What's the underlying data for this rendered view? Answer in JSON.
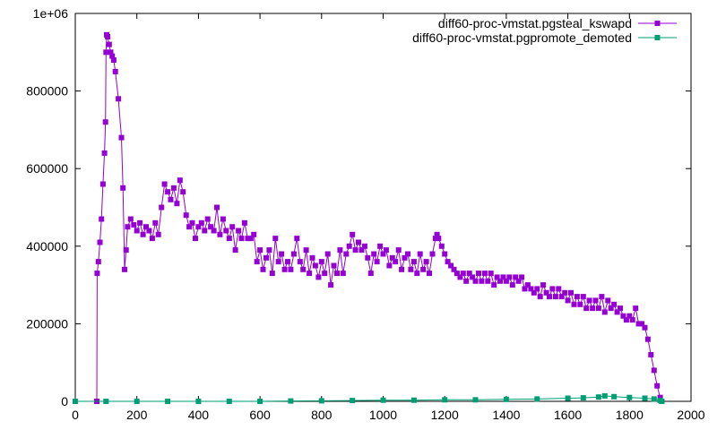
{
  "chart_data": {
    "type": "line",
    "title": "",
    "xlabel": "",
    "ylabel": "",
    "xlim": [
      0,
      2000
    ],
    "ylim": [
      0,
      1000000
    ],
    "x_ticks": [
      0,
      200,
      400,
      600,
      800,
      1000,
      1200,
      1400,
      1600,
      1800,
      2000
    ],
    "y_ticks": [
      0,
      200000,
      400000,
      600000,
      800000,
      1000000
    ],
    "x_tick_labels": [
      "0",
      "200",
      "400",
      "600",
      "800",
      "1000",
      "1200",
      "1400",
      "1600",
      "1800",
      "2000"
    ],
    "y_tick_labels": [
      "0",
      "200000",
      "400000",
      "600000",
      "800000",
      "1e+06"
    ],
    "grid": false,
    "legend_position": "top-right",
    "series": [
      {
        "name": "diff60-proc-vmstat.pgsteal_kswapd",
        "color": "#9400d3",
        "marker": "square",
        "points": [
          [
            70,
            0
          ],
          [
            71,
            330000
          ],
          [
            75,
            360000
          ],
          [
            80,
            410000
          ],
          [
            85,
            470000
          ],
          [
            90,
            560000
          ],
          [
            95,
            640000
          ],
          [
            98,
            720000
          ],
          [
            100,
            900000
          ],
          [
            102,
            945000
          ],
          [
            105,
            940000
          ],
          [
            110,
            920000
          ],
          [
            115,
            900000
          ],
          [
            120,
            890000
          ],
          [
            125,
            880000
          ],
          [
            130,
            850000
          ],
          [
            140,
            780000
          ],
          [
            150,
            680000
          ],
          [
            155,
            550000
          ],
          [
            160,
            340000
          ],
          [
            165,
            390000
          ],
          [
            170,
            450000
          ],
          [
            180,
            470000
          ],
          [
            190,
            455000
          ],
          [
            200,
            440000
          ],
          [
            210,
            460000
          ],
          [
            220,
            430000
          ],
          [
            230,
            450000
          ],
          [
            240,
            440000
          ],
          [
            250,
            420000
          ],
          [
            260,
            460000
          ],
          [
            270,
            430000
          ],
          [
            280,
            500000
          ],
          [
            290,
            560000
          ],
          [
            300,
            540000
          ],
          [
            310,
            520000
          ],
          [
            320,
            550000
          ],
          [
            330,
            510000
          ],
          [
            340,
            570000
          ],
          [
            350,
            540000
          ],
          [
            360,
            480000
          ],
          [
            370,
            450000
          ],
          [
            380,
            460000
          ],
          [
            390,
            420000
          ],
          [
            400,
            450000
          ],
          [
            410,
            460000
          ],
          [
            420,
            440000
          ],
          [
            430,
            470000
          ],
          [
            440,
            450000
          ],
          [
            450,
            440000
          ],
          [
            460,
            500000
          ],
          [
            470,
            430000
          ],
          [
            480,
            470000
          ],
          [
            490,
            440000
          ],
          [
            500,
            420000
          ],
          [
            510,
            450000
          ],
          [
            520,
            390000
          ],
          [
            530,
            440000
          ],
          [
            540,
            420000
          ],
          [
            550,
            460000
          ],
          [
            560,
            420000
          ],
          [
            570,
            420000
          ],
          [
            580,
            430000
          ],
          [
            590,
            360000
          ],
          [
            600,
            390000
          ],
          [
            610,
            340000
          ],
          [
            620,
            370000
          ],
          [
            630,
            390000
          ],
          [
            640,
            330000
          ],
          [
            650,
            420000
          ],
          [
            660,
            360000
          ],
          [
            670,
            380000
          ],
          [
            680,
            340000
          ],
          [
            690,
            360000
          ],
          [
            700,
            340000
          ],
          [
            710,
            380000
          ],
          [
            720,
            420000
          ],
          [
            730,
            360000
          ],
          [
            740,
            340000
          ],
          [
            750,
            390000
          ],
          [
            760,
            330000
          ],
          [
            770,
            370000
          ],
          [
            780,
            350000
          ],
          [
            790,
            320000
          ],
          [
            800,
            360000
          ],
          [
            810,
            330000
          ],
          [
            820,
            380000
          ],
          [
            830,
            300000
          ],
          [
            840,
            350000
          ],
          [
            850,
            330000
          ],
          [
            860,
            390000
          ],
          [
            870,
            330000
          ],
          [
            880,
            380000
          ],
          [
            890,
            400000
          ],
          [
            900,
            430000
          ],
          [
            910,
            390000
          ],
          [
            920,
            410000
          ],
          [
            930,
            390000
          ],
          [
            940,
            400000
          ],
          [
            950,
            370000
          ],
          [
            960,
            330000
          ],
          [
            970,
            380000
          ],
          [
            980,
            360000
          ],
          [
            990,
            400000
          ],
          [
            1000,
            380000
          ],
          [
            1010,
            390000
          ],
          [
            1020,
            350000
          ],
          [
            1030,
            370000
          ],
          [
            1040,
            360000
          ],
          [
            1050,
            390000
          ],
          [
            1060,
            340000
          ],
          [
            1070,
            370000
          ],
          [
            1080,
            380000
          ],
          [
            1090,
            340000
          ],
          [
            1100,
            360000
          ],
          [
            1110,
            330000
          ],
          [
            1120,
            380000
          ],
          [
            1130,
            340000
          ],
          [
            1140,
            360000
          ],
          [
            1150,
            330000
          ],
          [
            1160,
            380000
          ],
          [
            1170,
            420000
          ],
          [
            1175,
            430000
          ],
          [
            1180,
            420000
          ],
          [
            1190,
            400000
          ],
          [
            1200,
            380000
          ],
          [
            1210,
            360000
          ],
          [
            1220,
            350000
          ],
          [
            1230,
            340000
          ],
          [
            1240,
            330000
          ],
          [
            1250,
            320000
          ],
          [
            1260,
            330000
          ],
          [
            1270,
            310000
          ],
          [
            1280,
            330000
          ],
          [
            1290,
            320000
          ],
          [
            1300,
            310000
          ],
          [
            1310,
            330000
          ],
          [
            1320,
            310000
          ],
          [
            1330,
            330000
          ],
          [
            1340,
            310000
          ],
          [
            1350,
            330000
          ],
          [
            1360,
            300000
          ],
          [
            1370,
            320000
          ],
          [
            1380,
            310000
          ],
          [
            1390,
            320000
          ],
          [
            1400,
            310000
          ],
          [
            1410,
            320000
          ],
          [
            1420,
            300000
          ],
          [
            1430,
            320000
          ],
          [
            1440,
            310000
          ],
          [
            1450,
            320000
          ],
          [
            1460,
            290000
          ],
          [
            1470,
            300000
          ],
          [
            1480,
            290000
          ],
          [
            1490,
            280000
          ],
          [
            1500,
            290000
          ],
          [
            1510,
            270000
          ],
          [
            1520,
            300000
          ],
          [
            1530,
            280000
          ],
          [
            1540,
            270000
          ],
          [
            1550,
            290000
          ],
          [
            1560,
            270000
          ],
          [
            1570,
            290000
          ],
          [
            1580,
            270000
          ],
          [
            1590,
            280000
          ],
          [
            1600,
            260000
          ],
          [
            1610,
            280000
          ],
          [
            1620,
            250000
          ],
          [
            1630,
            270000
          ],
          [
            1640,
            250000
          ],
          [
            1650,
            270000
          ],
          [
            1660,
            240000
          ],
          [
            1670,
            260000
          ],
          [
            1680,
            240000
          ],
          [
            1690,
            260000
          ],
          [
            1700,
            240000
          ],
          [
            1710,
            270000
          ],
          [
            1720,
            230000
          ],
          [
            1730,
            260000
          ],
          [
            1740,
            240000
          ],
          [
            1750,
            250000
          ],
          [
            1760,
            230000
          ],
          [
            1770,
            240000
          ],
          [
            1780,
            220000
          ],
          [
            1790,
            210000
          ],
          [
            1800,
            220000
          ],
          [
            1810,
            210000
          ],
          [
            1820,
            240000
          ],
          [
            1830,
            200000
          ],
          [
            1840,
            200000
          ],
          [
            1850,
            190000
          ],
          [
            1860,
            160000
          ],
          [
            1870,
            120000
          ],
          [
            1880,
            80000
          ],
          [
            1890,
            40000
          ],
          [
            1900,
            10000
          ],
          [
            1905,
            0
          ]
        ]
      },
      {
        "name": "diff60-proc-vmstat.pgpromote_demoted",
        "color": "#009e73",
        "marker": "square",
        "points": [
          [
            0,
            0
          ],
          [
            100,
            0
          ],
          [
            200,
            0
          ],
          [
            300,
            0
          ],
          [
            400,
            0
          ],
          [
            500,
            0
          ],
          [
            600,
            0
          ],
          [
            700,
            1000
          ],
          [
            800,
            1500
          ],
          [
            900,
            2000
          ],
          [
            1000,
            3000
          ],
          [
            1100,
            3000
          ],
          [
            1200,
            4000
          ],
          [
            1300,
            4000
          ],
          [
            1400,
            5000
          ],
          [
            1500,
            6000
          ],
          [
            1600,
            8000
          ],
          [
            1650,
            9000
          ],
          [
            1700,
            11000
          ],
          [
            1720,
            14000
          ],
          [
            1750,
            12000
          ],
          [
            1800,
            10000
          ],
          [
            1850,
            8000
          ],
          [
            1880,
            6000
          ],
          [
            1900,
            2000
          ],
          [
            1905,
            0
          ]
        ]
      }
    ]
  }
}
